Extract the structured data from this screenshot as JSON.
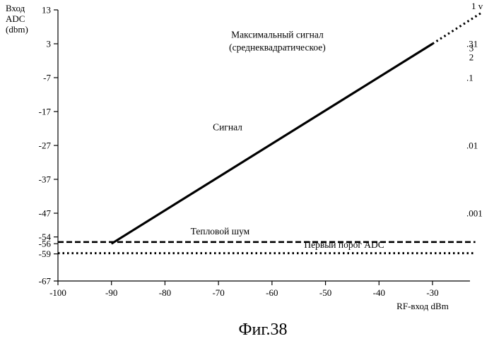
{
  "chart_data": {
    "type": "line",
    "ylabel_lines": [
      "Вход",
      "ADC",
      "(dbm)"
    ],
    "xlabel": "RF-вход dBm",
    "figure_caption": "Фиг.38",
    "xlim": [
      -100,
      -23
    ],
    "ylim": [
      -67,
      13
    ],
    "x_ticks": [
      -100,
      -90,
      -80,
      -70,
      -60,
      -50,
      -40,
      -30
    ],
    "y_ticks": [
      {
        "value": 13,
        "label": "13"
      },
      {
        "value": 3,
        "label": "3"
      },
      {
        "value": -7,
        "label": "-7"
      },
      {
        "value": -17,
        "label": "-17"
      },
      {
        "value": -27,
        "label": "-27"
      },
      {
        "value": -37,
        "label": "-37"
      },
      {
        "value": -47,
        "label": "-47"
      },
      {
        "value": -54,
        "label": "-54"
      },
      {
        "value": -56,
        "label": "-56"
      },
      {
        "value": -59,
        "label": "-59"
      },
      {
        "value": -67,
        "label": "-67"
      }
    ],
    "right_labels": [
      {
        "y": 13,
        "label": "1 v"
      },
      {
        "y": 3,
        "label": ".31"
      },
      {
        "y": 0,
        "label": "3 2",
        "vertical": true
      },
      {
        "y": -7,
        "label": ".1"
      },
      {
        "y": -27,
        "label": ".01"
      },
      {
        "y": -47,
        "label": ".001"
      }
    ],
    "series": [
      {
        "style": "solid",
        "x": [
          -90,
          -30
        ],
        "y": [
          -56,
          3
        ]
      },
      {
        "style": "dotted",
        "x": [
          -30,
          -21
        ],
        "y": [
          3,
          12
        ]
      },
      {
        "style": "dashed",
        "x": [
          -100,
          -22
        ],
        "y": [
          -55.5,
          -55.5
        ]
      },
      {
        "style": "dotted",
        "x": [
          -100,
          -22
        ],
        "y": [
          -58.8,
          -58.8
        ]
      }
    ],
    "annotations": [
      {
        "text": "Максимальный сигнал",
        "x": -59,
        "y": 4.8
      },
      {
        "text": "(среднеквадратическое)",
        "x": -59,
        "y": 1.0
      },
      {
        "text": "Сигнал",
        "x": -68.3,
        "y": -22.5
      },
      {
        "text": "Тепловой шум",
        "x": -69.7,
        "y": -53.2
      },
      {
        "text": "Первый порог ADC",
        "x": -46.5,
        "y": -57.2
      }
    ],
    "grid": false
  }
}
